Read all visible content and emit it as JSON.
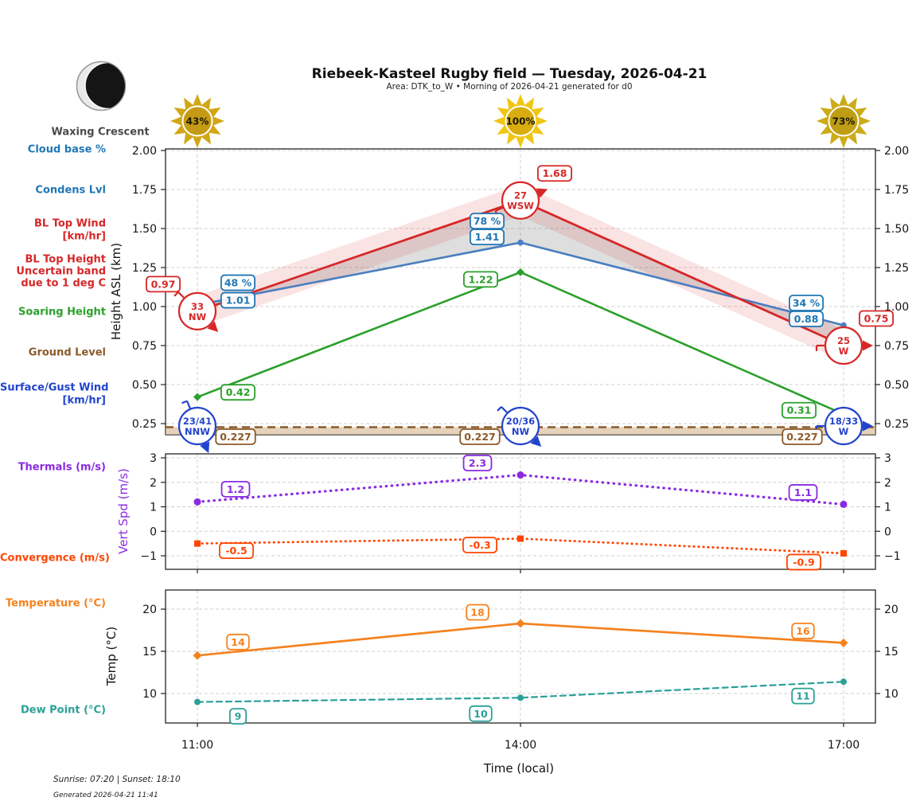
{
  "header": {
    "title": "Riebeek-Kasteel Rugby field — Tuesday, 2026-04-21",
    "subtitle": "Area: DTK_to_W • Morning of 2026-04-21 generated for d0",
    "moon_phase": "Waxing Crescent"
  },
  "suns": [
    {
      "pct": "43%",
      "ray": "#d2a716",
      "core": "#c59a14"
    },
    {
      "pct": "100%",
      "ray": "#f0c614",
      "core": "#d9ad10"
    },
    {
      "pct": "73%",
      "ray": "#ccab18",
      "core": "#bf9d14"
    }
  ],
  "side_labels": {
    "cloud_base": "Cloud base %",
    "condens": "Condens Lvl",
    "bl_top_wind_1": "BL Top Wind",
    "bl_top_wind_2": "[km/hr]",
    "bl_top_h_1": "BL Top Height",
    "bl_top_h_2": "Uncertain band",
    "bl_top_h_3": "due to 1 deg C",
    "soaring": "Soaring Height",
    "ground": "Ground Level",
    "surface_wind_1": "Surface/Gust Wind",
    "surface_wind_2": "[km/hr]",
    "thermals": "Thermals (m/s)",
    "convergence": "Convergence (m/s)",
    "temperature": "Temperature (°C)",
    "dew_point": "Dew Point (°C)"
  },
  "xlabel": "Time (local)",
  "footer": {
    "sun_times": "Sunrise: 07:20 | Sunset: 18:10",
    "generated": "Generated 2026-04-21 11:41"
  },
  "palette": {
    "blue_label": "#1f77b4",
    "blue_line": "#4a7ebf",
    "red": "#d62728",
    "green": "#2ca02c",
    "brown": "#8b5a2b",
    "ground_fill": "#d2b48c",
    "royal": "#2244cc",
    "purple": "#8a2be2",
    "orangered": "#ff4500",
    "orange": "#f5821f",
    "teal": "#2aa198"
  },
  "chart_data": [
    {
      "type": "line",
      "panel": "heights",
      "title": "Heights panel",
      "x": [
        "11:00",
        "14:00",
        "17:00"
      ],
      "ylabel": "Height ASL (km)",
      "yticks": [
        "2.00",
        "1.75",
        "1.50",
        "1.25",
        "1.00",
        "0.75",
        "0.50",
        "0.25"
      ],
      "ytick_values": [
        2.0,
        1.75,
        1.5,
        1.25,
        1.0,
        0.75,
        0.5,
        0.25
      ],
      "ylim": [
        0.18,
        2.01
      ],
      "grid": true,
      "series": [
        {
          "name": "BL Top Height",
          "color": "#d62728",
          "style": "solid",
          "values": [
            0.97,
            1.68,
            0.75
          ],
          "labels": [
            "0.97",
            "1.68",
            "0.75"
          ],
          "band_halfwidth_km": 0.1,
          "wind_markers": [
            {
              "speed": "33",
              "dir": "NW"
            },
            {
              "speed": "27",
              "dir": "WSW"
            },
            {
              "speed": "25",
              "dir": "W"
            }
          ]
        },
        {
          "name": "Condens Lvl / Cloud base",
          "color": "#4a7ebf",
          "label_color": "#1f77b4",
          "style": "solid",
          "values": [
            1.01,
            1.41,
            0.88
          ],
          "labels": [
            "1.01",
            "1.41",
            "0.88"
          ],
          "cloud_base_pct_labels": [
            "48 %",
            "78 %",
            "34 %"
          ]
        },
        {
          "name": "Soaring Height",
          "color": "#2ca02c",
          "style": "solid",
          "values": [
            0.42,
            1.22,
            0.31
          ],
          "labels": [
            "0.42",
            "1.22",
            "0.31"
          ]
        },
        {
          "name": "Ground Level",
          "color": "#8b5a2b",
          "style": "dashed",
          "fill_below": "#d2b48c",
          "values": [
            0.227,
            0.227,
            0.227
          ],
          "labels": [
            "0.227",
            "0.227",
            "0.227"
          ]
        },
        {
          "name": "Surface/Gust Wind",
          "color": "#2244cc",
          "marker_type": "wind_circle",
          "wind_markers": [
            {
              "speed": "23/41",
              "dir": "NNW"
            },
            {
              "speed": "20/36",
              "dir": "NW"
            },
            {
              "speed": "18/33",
              "dir": "W"
            }
          ]
        }
      ]
    },
    {
      "type": "line",
      "panel": "vert_speed",
      "title": "Vertical speed panel",
      "x": [
        "11:00",
        "14:00",
        "17:00"
      ],
      "ylabel": "Vert Spd (m/s)",
      "yticks": [
        "3",
        "2",
        "1",
        "0",
        "−1"
      ],
      "ytick_values": [
        3,
        2,
        1,
        0,
        -1
      ],
      "ylim": [
        -1.55,
        3.16
      ],
      "grid": true,
      "series": [
        {
          "name": "Thermals",
          "color": "#8a2be2",
          "style": "dotted",
          "marker": "circle",
          "values": [
            1.2,
            2.3,
            1.1
          ],
          "labels": [
            "1.2",
            "2.3",
            "1.1"
          ]
        },
        {
          "name": "Convergence",
          "color": "#ff4500",
          "style": "dotted",
          "marker": "square",
          "values": [
            -0.5,
            -0.3,
            -0.9
          ],
          "labels": [
            "-0.5",
            "-0.3",
            "-0.9"
          ]
        }
      ]
    },
    {
      "type": "line",
      "panel": "temperature",
      "title": "Temperature panel",
      "x": [
        "11:00",
        "14:00",
        "17:00"
      ],
      "ylabel": "Temp (°C)",
      "yticks": [
        "20",
        "15",
        "10"
      ],
      "ytick_values": [
        20,
        15,
        10
      ],
      "ylim": [
        6.5,
        22.3
      ],
      "grid": true,
      "series": [
        {
          "name": "Temperature",
          "color": "#f5821f",
          "style": "solid",
          "marker": "diamond",
          "values": [
            14.5,
            18.3,
            16.0
          ],
          "labels": [
            "14",
            "18",
            "16"
          ]
        },
        {
          "name": "Dew Point",
          "color": "#2aa198",
          "style": "dashed",
          "marker": "circle",
          "values": [
            9.0,
            9.5,
            11.4
          ],
          "labels": [
            "9",
            "10",
            "11"
          ]
        }
      ]
    }
  ]
}
